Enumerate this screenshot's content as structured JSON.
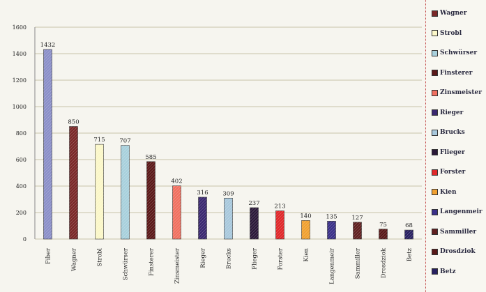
{
  "chart_data": {
    "type": "bar",
    "categories": [
      "Fiber",
      "Wagner",
      "Strobl",
      "Schwürser",
      "Finsterer",
      "Zinsmeister",
      "Rieger",
      "Brucks",
      "Flieger",
      "Forster",
      "Kien",
      "Langenmeir",
      "Sammiller",
      "Drosdziok",
      "Betz"
    ],
    "values": [
      1432,
      850,
      715,
      707,
      585,
      402,
      316,
      309,
      237,
      213,
      140,
      135,
      127,
      75,
      68
    ],
    "ylim": [
      0,
      1600
    ],
    "yticks": [
      "0",
      "200",
      "400",
      "600",
      "800",
      "1000",
      "1200",
      "1400",
      "1600"
    ],
    "grid": true,
    "legend_position": "right",
    "colors": [
      "#8b8fc8",
      "#7a2828",
      "#fbf7c8",
      "#a8d0dc",
      "#5a1818",
      "#f07060",
      "#3a2870",
      "#a8c8dc",
      "#2a1838",
      "#e0282a",
      "#f0a030",
      "#3a3088",
      "#602020",
      "#581818",
      "#282060"
    ],
    "legend": [
      "Wagner",
      "Strobl",
      "Schwürser",
      "Finsterer",
      "Zinsmeister",
      "Rieger",
      "Brucks",
      "Flieger",
      "Forster",
      "Kien",
      "Langenmeir",
      "Sammiller",
      "Drosdziok",
      "Betz"
    ]
  }
}
